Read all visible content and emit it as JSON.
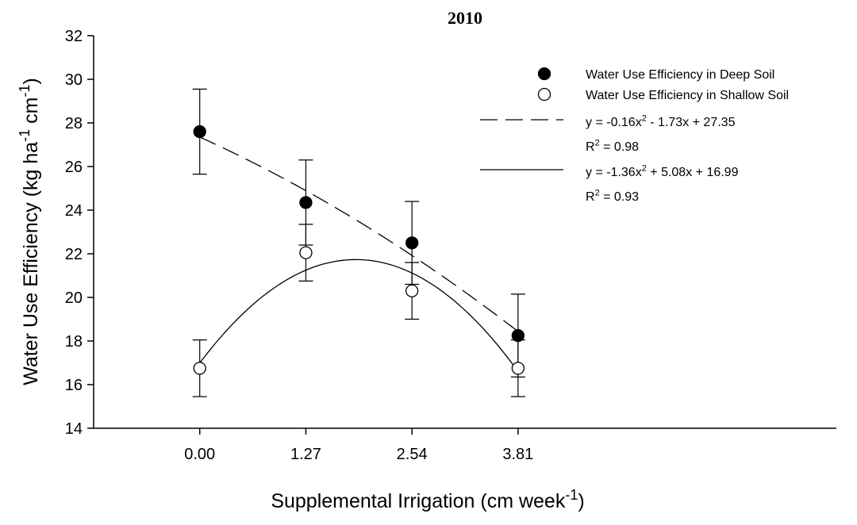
{
  "chart_data": {
    "type": "scatter",
    "title": "2010",
    "x_label": [
      "Supplemental Irrigation (cm week",
      "-1",
      ")"
    ],
    "y_label": [
      "Water Use Efficiency (kg ha",
      "-1",
      " cm",
      "-1",
      ")"
    ],
    "x": [
      0,
      1.27,
      2.54,
      3.81
    ],
    "xlim": [
      -1.27,
      7.62
    ],
    "xticks": [
      {
        "value": 0,
        "label": "0.00"
      },
      1.27,
      2.54,
      3.81
    ],
    "ylim": [
      14,
      32
    ],
    "yticks": [
      14,
      16,
      18,
      20,
      22,
      24,
      26,
      28,
      30,
      32
    ],
    "series": [
      {
        "name": "Water Use Efficiency in Deep Soil",
        "color": "#000000",
        "marker_fill": "#000000",
        "values": [
          27.6,
          24.35,
          22.5,
          18.25
        ],
        "errors": [
          1.95,
          1.95,
          1.9,
          1.9
        ]
      },
      {
        "name": "Water Use Efficiency in Shallow Soil",
        "color": "#000000",
        "marker_fill": "#ffffff",
        "values": [
          16.75,
          22.05,
          20.3,
          16.75
        ],
        "errors": [
          1.3,
          1.3,
          1.3,
          1.3
        ]
      }
    ],
    "trendlines": [
      {
        "style": "dashed",
        "coefficients": [
          -0.16,
          -1.73,
          27.35
        ],
        "equation": [
          "y = -0.16x",
          "2",
          " - 1.73x + 27.35"
        ],
        "r_squared": [
          "R",
          "2",
          " = 0.98"
        ]
      },
      {
        "style": "solid",
        "coefficients": [
          -1.36,
          5.08,
          16.99
        ],
        "equation": [
          "y = -1.36x",
          "2",
          " + 5.08x + 16.99"
        ],
        "r_squared": [
          "R",
          "2",
          " = 0.93"
        ]
      }
    ]
  }
}
